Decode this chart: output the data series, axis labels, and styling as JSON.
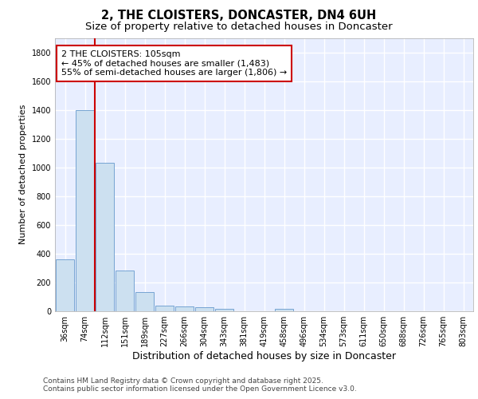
{
  "title": "2, THE CLOISTERS, DONCASTER, DN4 6UH",
  "subtitle": "Size of property relative to detached houses in Doncaster",
  "xlabel": "Distribution of detached houses by size in Doncaster",
  "ylabel": "Number of detached properties",
  "categories": [
    "36sqm",
    "74sqm",
    "112sqm",
    "151sqm",
    "189sqm",
    "227sqm",
    "266sqm",
    "304sqm",
    "343sqm",
    "381sqm",
    "419sqm",
    "458sqm",
    "496sqm",
    "534sqm",
    "573sqm",
    "611sqm",
    "650sqm",
    "688sqm",
    "726sqm",
    "765sqm",
    "803sqm"
  ],
  "values": [
    360,
    1400,
    1030,
    285,
    135,
    40,
    35,
    25,
    15,
    0,
    0,
    15,
    0,
    0,
    0,
    0,
    0,
    0,
    0,
    0,
    0
  ],
  "bar_color": "#cce0f0",
  "bar_edge_color": "#6699cc",
  "red_line_x": 1.5,
  "red_line_color": "#cc0000",
  "annotation_text": "2 THE CLOISTERS: 105sqm\n← 45% of detached houses are smaller (1,483)\n55% of semi-detached houses are larger (1,806) →",
  "annotation_box_color": "#ffffff",
  "annotation_box_edge_color": "#cc0000",
  "ylim": [
    0,
    1900
  ],
  "yticks": [
    0,
    200,
    400,
    600,
    800,
    1000,
    1200,
    1400,
    1600,
    1800
  ],
  "fig_background": "#ffffff",
  "plot_background": "#e8eeff",
  "grid_color": "#ffffff",
  "footer_text": "Contains HM Land Registry data © Crown copyright and database right 2025.\nContains public sector information licensed under the Open Government Licence v3.0.",
  "title_fontsize": 10.5,
  "subtitle_fontsize": 9.5,
  "xlabel_fontsize": 9,
  "ylabel_fontsize": 8,
  "tick_fontsize": 7,
  "annotation_fontsize": 8,
  "footer_fontsize": 6.5
}
